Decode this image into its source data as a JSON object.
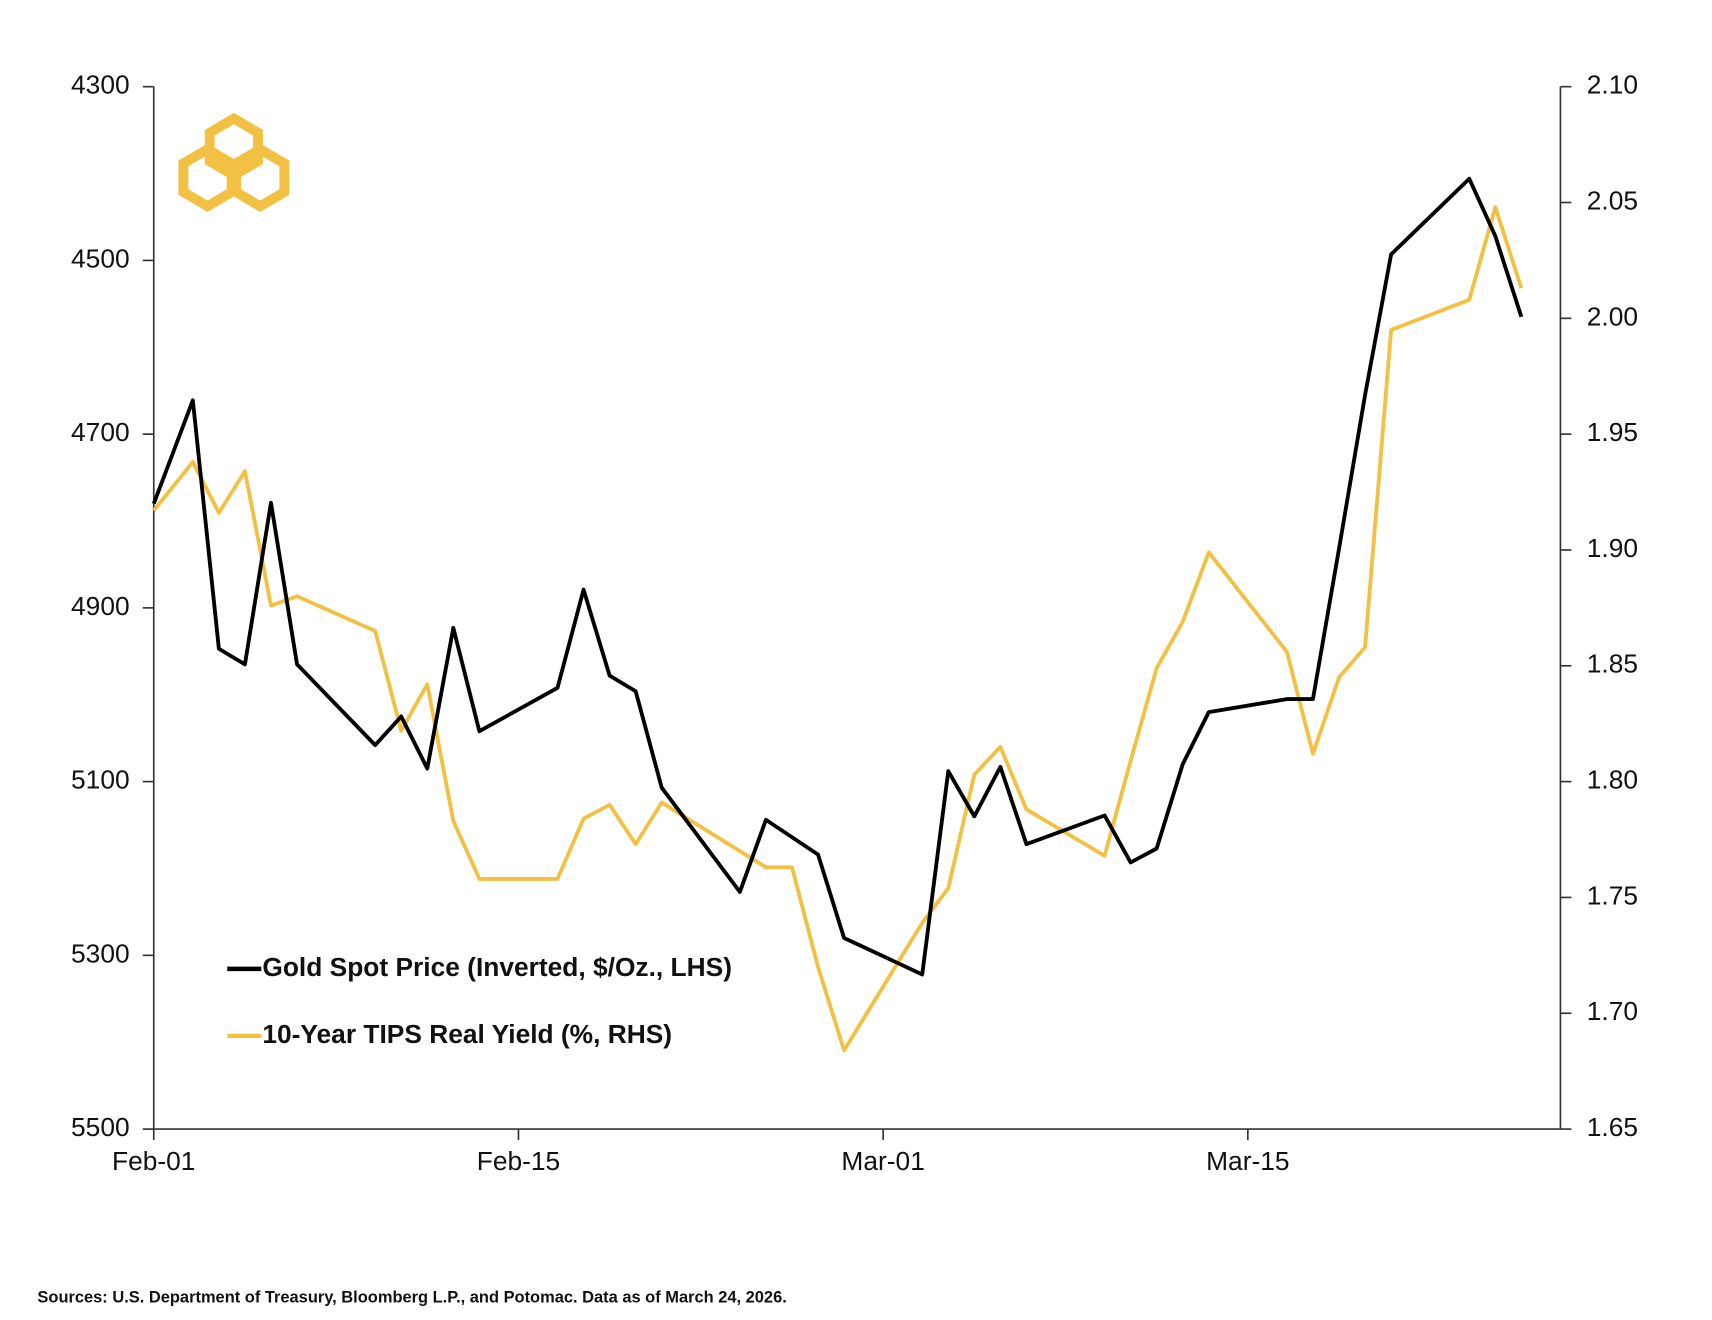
{
  "chart_data": {
    "type": "line",
    "y_inverted": true,
    "x": [
      0,
      1.5,
      2.5,
      3.5,
      4.5,
      5.5,
      8.5,
      9.5,
      10.5,
      11.5,
      12.5,
      15.5,
      16.5,
      17.5,
      18.5,
      19.5,
      22.5,
      23.5,
      24.5,
      25.5,
      26.5,
      29.5,
      30.5,
      31.5,
      32.5,
      33.5,
      36.5,
      37.5,
      38.5,
      39.5,
      40.5,
      43.5,
      44.5,
      45.5,
      46.5,
      47.5,
      50.5,
      51.5,
      52.5
    ],
    "xlim": [
      0,
      54
    ],
    "xticks": [
      {
        "value": 0,
        "label": "Feb-01"
      },
      {
        "value": 14,
        "label": "Feb-15"
      },
      {
        "value": 28,
        "label": "Mar-01"
      },
      {
        "value": 42,
        "label": "Mar-15"
      }
    ],
    "ylim": [
      4300,
      5500
    ],
    "yticks": [
      4300,
      4500,
      4700,
      4900,
      5100,
      5300,
      5500
    ],
    "y2lim": [
      1.65,
      2.1
    ],
    "y2ticks": [
      {
        "value": 2.1,
        "label": "2.10"
      },
      2.05,
      {
        "value": 2.0,
        "label": "2.00"
      },
      1.95,
      {
        "value": 1.9,
        "label": "1.90"
      },
      1.85,
      {
        "value": 1.8,
        "label": "1.80"
      },
      1.75,
      {
        "value": 1.7,
        "label": "1.70"
      },
      1.65
    ],
    "series": [
      {
        "name": "Gold Spot Price (Inverted, $/Oz., LHS)",
        "color": "#000000",
        "values": [
          4780,
          4661,
          4947,
          4965,
          4779,
          4965,
          5058,
          5025,
          5085,
          4923,
          5042,
          4992,
          4879,
          4978,
          4996,
          5107,
          5227,
          5144,
          5164,
          5184,
          5280,
          5322,
          5088,
          5140,
          5083,
          5172,
          5139,
          5193,
          5177,
          5080,
          5020,
          5005,
          5005,
          4832,
          4655,
          4493,
          4406,
          4472,
          4565
        ]
      },
      {
        "name": "10-Year TIPS Real Yield (%, RHS)",
        "color": "#f2c144",
        "axis": "y2",
        "values": [
          1.917,
          1.938,
          1.916,
          1.934,
          1.876,
          1.88,
          1.865,
          1.822,
          1.842,
          1.783,
          1.758,
          1.758,
          1.784,
          1.79,
          1.773,
          1.791,
          1.77,
          1.763,
          1.763,
          1.72,
          1.684,
          1.739,
          1.754,
          1.803,
          1.815,
          1.788,
          1.768,
          1.809,
          1.849,
          1.869,
          1.899,
          1.856,
          1.812,
          1.845,
          1.858,
          1.995,
          2.008,
          2.048,
          2.013
        ]
      }
    ],
    "source": "Sources: U.S. Department of Treasury, Bloomberg L.P., and Potomac. Data as of March 24, 2026."
  }
}
